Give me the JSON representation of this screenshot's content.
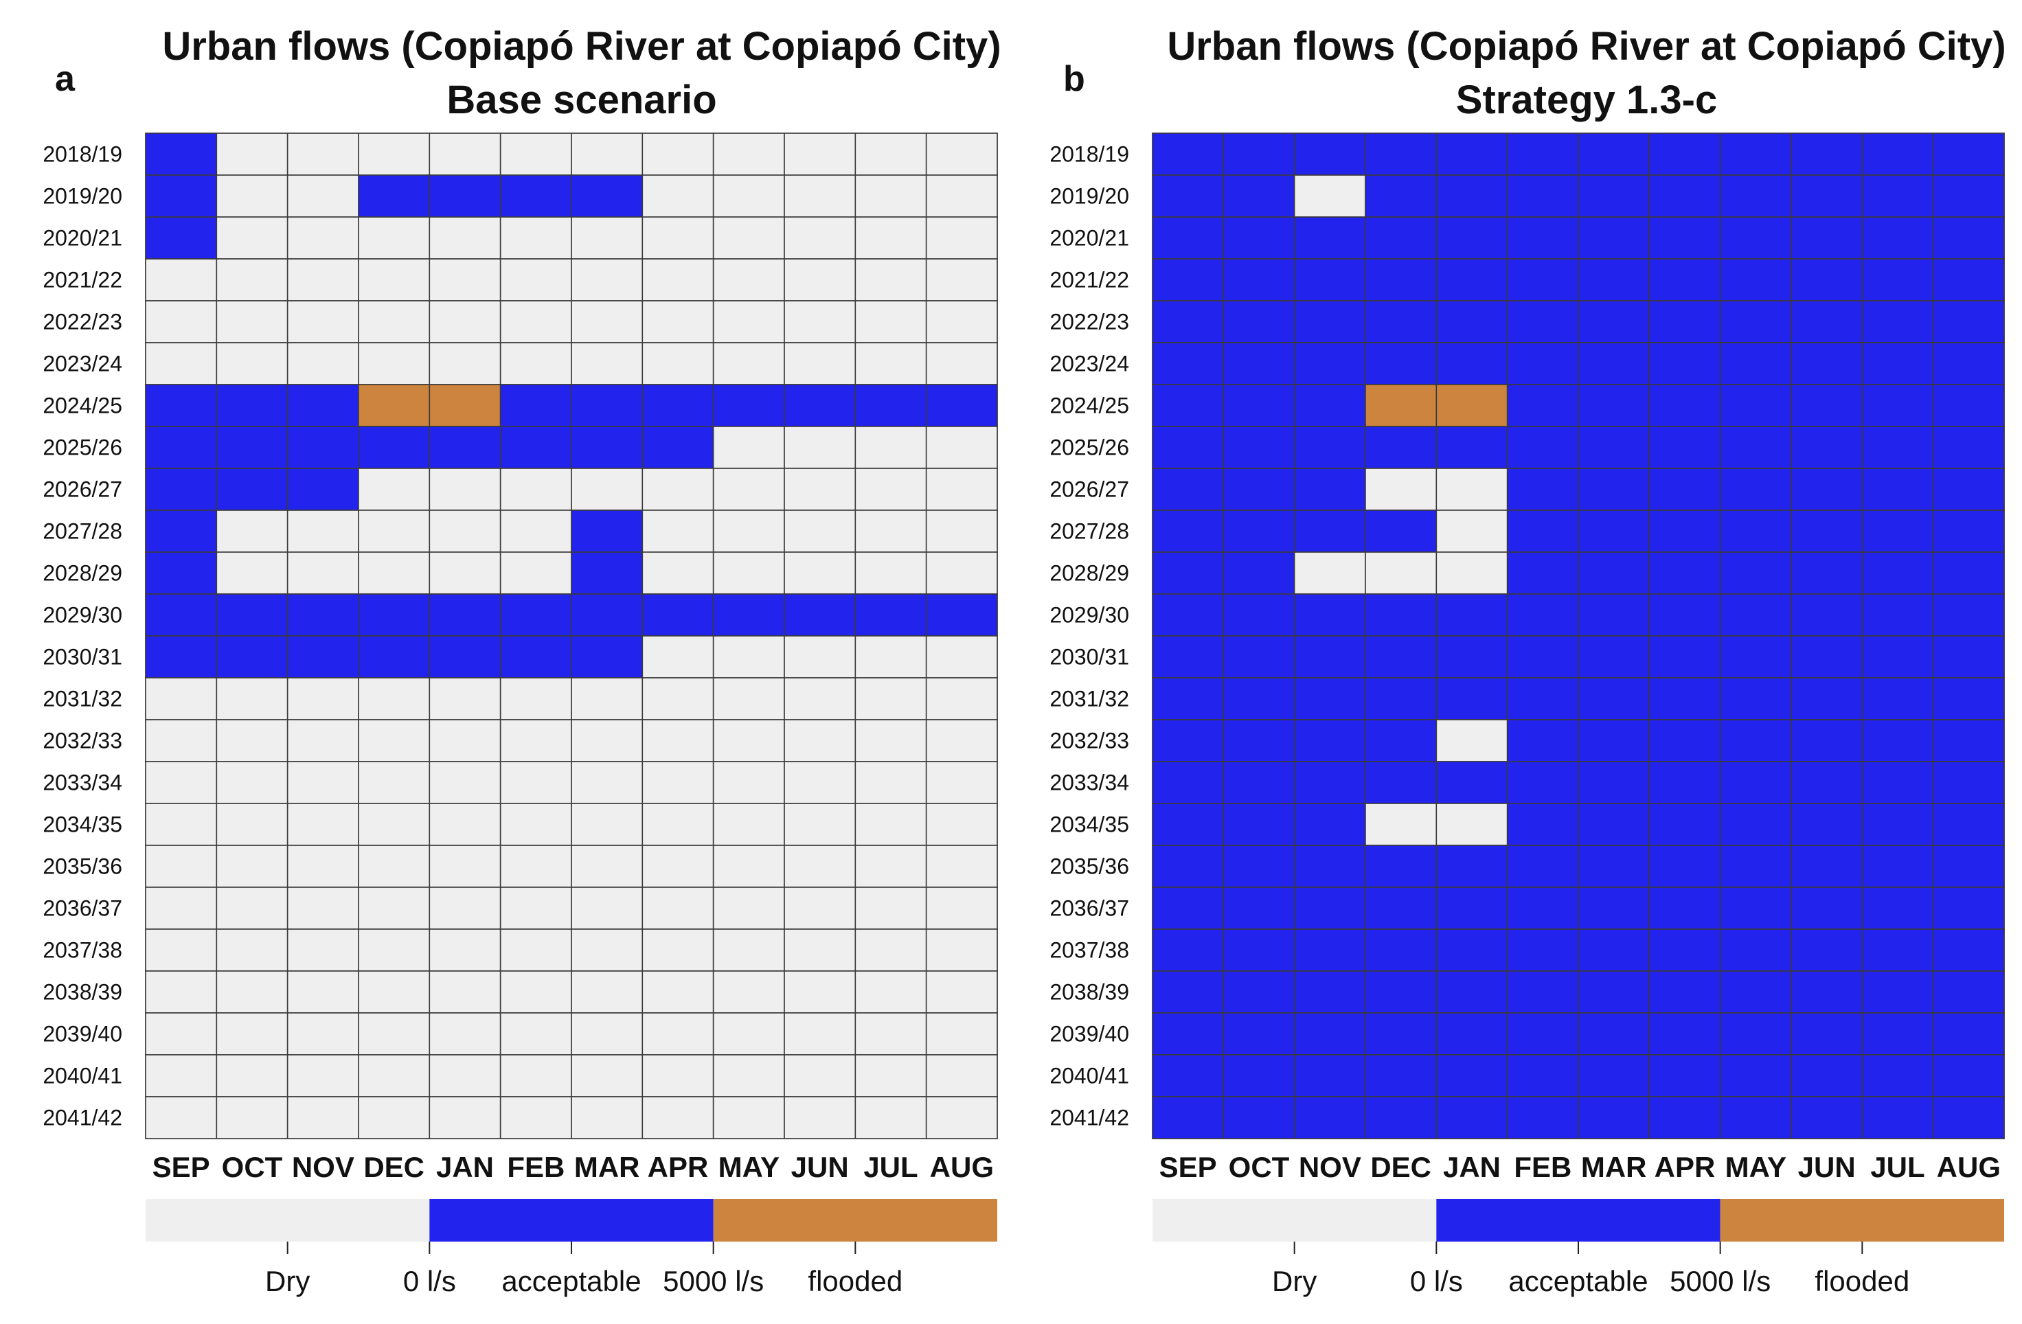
{
  "colors": {
    "dry": "#efefef",
    "acceptable": "#2323ee",
    "flooded": "#cd843e",
    "grid": "#3a3a3a",
    "border": "#9a9a9a"
  },
  "chart_data": [
    {
      "type": "heatmap",
      "panel": "a",
      "title_line1": "Urban flows (Copiapó River at Copiapó City)",
      "title_line2": "Base scenario",
      "x": [
        "SEP",
        "OCT",
        "NOV",
        "DEC",
        "JAN",
        "FEB",
        "MAR",
        "APR",
        "MAY",
        "JUN",
        "JUL",
        "AUG"
      ],
      "y": [
        "2018/19",
        "2019/20",
        "2020/21",
        "2021/22",
        "2022/23",
        "2023/24",
        "2024/25",
        "2025/26",
        "2026/27",
        "2027/28",
        "2028/29",
        "2029/30",
        "2030/31",
        "2031/32",
        "2032/33",
        "2033/34",
        "2034/35",
        "2035/36",
        "2036/37",
        "2037/38",
        "2038/39",
        "2039/40",
        "2040/41",
        "2041/42"
      ],
      "category_codes": {
        "0": "Dry",
        "1": "acceptable",
        "2": "flooded"
      },
      "values": [
        [
          1,
          0,
          0,
          0,
          0,
          0,
          0,
          0,
          0,
          0,
          0,
          0
        ],
        [
          1,
          0,
          0,
          1,
          1,
          1,
          1,
          0,
          0,
          0,
          0,
          0
        ],
        [
          1,
          0,
          0,
          0,
          0,
          0,
          0,
          0,
          0,
          0,
          0,
          0
        ],
        [
          0,
          0,
          0,
          0,
          0,
          0,
          0,
          0,
          0,
          0,
          0,
          0
        ],
        [
          0,
          0,
          0,
          0,
          0,
          0,
          0,
          0,
          0,
          0,
          0,
          0
        ],
        [
          0,
          0,
          0,
          0,
          0,
          0,
          0,
          0,
          0,
          0,
          0,
          0
        ],
        [
          1,
          1,
          1,
          2,
          2,
          1,
          1,
          1,
          1,
          1,
          1,
          1
        ],
        [
          1,
          1,
          1,
          1,
          1,
          1,
          1,
          1,
          0,
          0,
          0,
          0
        ],
        [
          1,
          1,
          1,
          0,
          0,
          0,
          0,
          0,
          0,
          0,
          0,
          0
        ],
        [
          1,
          0,
          0,
          0,
          0,
          0,
          1,
          0,
          0,
          0,
          0,
          0
        ],
        [
          1,
          0,
          0,
          0,
          0,
          0,
          1,
          0,
          0,
          0,
          0,
          0
        ],
        [
          1,
          1,
          1,
          1,
          1,
          1,
          1,
          1,
          1,
          1,
          1,
          1
        ],
        [
          1,
          1,
          1,
          1,
          1,
          1,
          1,
          0,
          0,
          0,
          0,
          0
        ],
        [
          0,
          0,
          0,
          0,
          0,
          0,
          0,
          0,
          0,
          0,
          0,
          0
        ],
        [
          0,
          0,
          0,
          0,
          0,
          0,
          0,
          0,
          0,
          0,
          0,
          0
        ],
        [
          0,
          0,
          0,
          0,
          0,
          0,
          0,
          0,
          0,
          0,
          0,
          0
        ],
        [
          0,
          0,
          0,
          0,
          0,
          0,
          0,
          0,
          0,
          0,
          0,
          0
        ],
        [
          0,
          0,
          0,
          0,
          0,
          0,
          0,
          0,
          0,
          0,
          0,
          0
        ],
        [
          0,
          0,
          0,
          0,
          0,
          0,
          0,
          0,
          0,
          0,
          0,
          0
        ],
        [
          0,
          0,
          0,
          0,
          0,
          0,
          0,
          0,
          0,
          0,
          0,
          0
        ],
        [
          0,
          0,
          0,
          0,
          0,
          0,
          0,
          0,
          0,
          0,
          0,
          0
        ],
        [
          0,
          0,
          0,
          0,
          0,
          0,
          0,
          0,
          0,
          0,
          0,
          0
        ],
        [
          0,
          0,
          0,
          0,
          0,
          0,
          0,
          0,
          0,
          0,
          0,
          0
        ],
        [
          0,
          0,
          0,
          0,
          0,
          0,
          0,
          0,
          0,
          0,
          0,
          0
        ]
      ],
      "legend": {
        "segments": [
          "Dry",
          "acceptable",
          "flooded"
        ],
        "labels": [
          "Dry",
          "0 l/s",
          "acceptable",
          "5000 l/s",
          "flooded"
        ]
      }
    },
    {
      "type": "heatmap",
      "panel": "b",
      "title_line1": "Urban flows (Copiapó River at Copiapó City)",
      "title_line2": "Strategy 1.3-c",
      "x": [
        "SEP",
        "OCT",
        "NOV",
        "DEC",
        "JAN",
        "FEB",
        "MAR",
        "APR",
        "MAY",
        "JUN",
        "JUL",
        "AUG"
      ],
      "y": [
        "2018/19",
        "2019/20",
        "2020/21",
        "2021/22",
        "2022/23",
        "2023/24",
        "2024/25",
        "2025/26",
        "2026/27",
        "2027/28",
        "2028/29",
        "2029/30",
        "2030/31",
        "2031/32",
        "2032/33",
        "2033/34",
        "2034/35",
        "2035/36",
        "2036/37",
        "2037/38",
        "2038/39",
        "2039/40",
        "2040/41",
        "2041/42"
      ],
      "category_codes": {
        "0": "Dry",
        "1": "acceptable",
        "2": "flooded"
      },
      "values": [
        [
          1,
          1,
          1,
          1,
          1,
          1,
          1,
          1,
          1,
          1,
          1,
          1
        ],
        [
          1,
          1,
          0,
          1,
          1,
          1,
          1,
          1,
          1,
          1,
          1,
          1
        ],
        [
          1,
          1,
          1,
          1,
          1,
          1,
          1,
          1,
          1,
          1,
          1,
          1
        ],
        [
          1,
          1,
          1,
          1,
          1,
          1,
          1,
          1,
          1,
          1,
          1,
          1
        ],
        [
          1,
          1,
          1,
          1,
          1,
          1,
          1,
          1,
          1,
          1,
          1,
          1
        ],
        [
          1,
          1,
          1,
          1,
          1,
          1,
          1,
          1,
          1,
          1,
          1,
          1
        ],
        [
          1,
          1,
          1,
          2,
          2,
          1,
          1,
          1,
          1,
          1,
          1,
          1
        ],
        [
          1,
          1,
          1,
          1,
          1,
          1,
          1,
          1,
          1,
          1,
          1,
          1
        ],
        [
          1,
          1,
          1,
          0,
          0,
          1,
          1,
          1,
          1,
          1,
          1,
          1
        ],
        [
          1,
          1,
          1,
          1,
          0,
          1,
          1,
          1,
          1,
          1,
          1,
          1
        ],
        [
          1,
          1,
          0,
          0,
          0,
          1,
          1,
          1,
          1,
          1,
          1,
          1
        ],
        [
          1,
          1,
          1,
          1,
          1,
          1,
          1,
          1,
          1,
          1,
          1,
          1
        ],
        [
          1,
          1,
          1,
          1,
          1,
          1,
          1,
          1,
          1,
          1,
          1,
          1
        ],
        [
          1,
          1,
          1,
          1,
          1,
          1,
          1,
          1,
          1,
          1,
          1,
          1
        ],
        [
          1,
          1,
          1,
          1,
          0,
          1,
          1,
          1,
          1,
          1,
          1,
          1
        ],
        [
          1,
          1,
          1,
          1,
          1,
          1,
          1,
          1,
          1,
          1,
          1,
          1
        ],
        [
          1,
          1,
          1,
          0,
          0,
          1,
          1,
          1,
          1,
          1,
          1,
          1
        ],
        [
          1,
          1,
          1,
          1,
          1,
          1,
          1,
          1,
          1,
          1,
          1,
          1
        ],
        [
          1,
          1,
          1,
          1,
          1,
          1,
          1,
          1,
          1,
          1,
          1,
          1
        ],
        [
          1,
          1,
          1,
          1,
          1,
          1,
          1,
          1,
          1,
          1,
          1,
          1
        ],
        [
          1,
          1,
          1,
          1,
          1,
          1,
          1,
          1,
          1,
          1,
          1,
          1
        ],
        [
          1,
          1,
          1,
          1,
          1,
          1,
          1,
          1,
          1,
          1,
          1,
          1
        ],
        [
          1,
          1,
          1,
          1,
          1,
          1,
          1,
          1,
          1,
          1,
          1,
          1
        ],
        [
          1,
          1,
          1,
          1,
          1,
          1,
          1,
          1,
          1,
          1,
          1,
          1
        ]
      ],
      "legend": {
        "segments": [
          "Dry",
          "acceptable",
          "flooded"
        ],
        "labels": [
          "Dry",
          "0 l/s",
          "acceptable",
          "5000 l/s",
          "flooded"
        ]
      }
    }
  ]
}
